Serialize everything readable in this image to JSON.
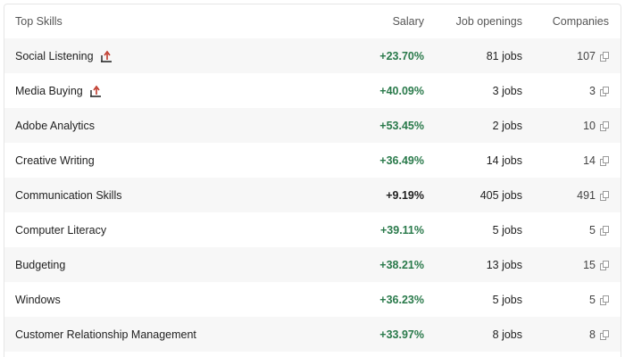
{
  "header": {
    "skills": "Top Skills",
    "salary": "Salary",
    "jobs": "Job openings",
    "companies": "Companies"
  },
  "rows": [
    {
      "skill": "Social Listening",
      "salary": "+23.70%",
      "jobs": "81 jobs",
      "companies": "107",
      "trend_icon": "trending-up-icon",
      "salary_color": "#2a7a4b"
    },
    {
      "skill": "Media Buying",
      "salary": "+40.09%",
      "jobs": "3 jobs",
      "companies": "3",
      "trend_icon": "trending-up-icon",
      "salary_color": "#2a7a4b"
    },
    {
      "skill": "Adobe Analytics",
      "salary": "+53.45%",
      "jobs": "2 jobs",
      "companies": "10",
      "salary_color": "#2a7a4b"
    },
    {
      "skill": "Creative Writing",
      "salary": "+36.49%",
      "jobs": "14 jobs",
      "companies": "14",
      "salary_color": "#2a7a4b"
    },
    {
      "skill": "Communication Skills",
      "salary": "+9.19%",
      "jobs": "405 jobs",
      "companies": "491",
      "salary_color": "#1f1f1f"
    },
    {
      "skill": "Computer Literacy",
      "salary": "+39.11%",
      "jobs": "5 jobs",
      "companies": "5",
      "salary_color": "#2a7a4b"
    },
    {
      "skill": "Budgeting",
      "salary": "+38.21%",
      "jobs": "13 jobs",
      "companies": "15",
      "salary_color": "#2a7a4b"
    },
    {
      "skill": "Windows",
      "salary": "+36.23%",
      "jobs": "5 jobs",
      "companies": "5",
      "salary_color": "#2a7a4b"
    },
    {
      "skill": "Customer Relationship Management",
      "salary": "+33.97%",
      "jobs": "8 jobs",
      "companies": "8",
      "salary_color": "#2a7a4b"
    }
  ]
}
